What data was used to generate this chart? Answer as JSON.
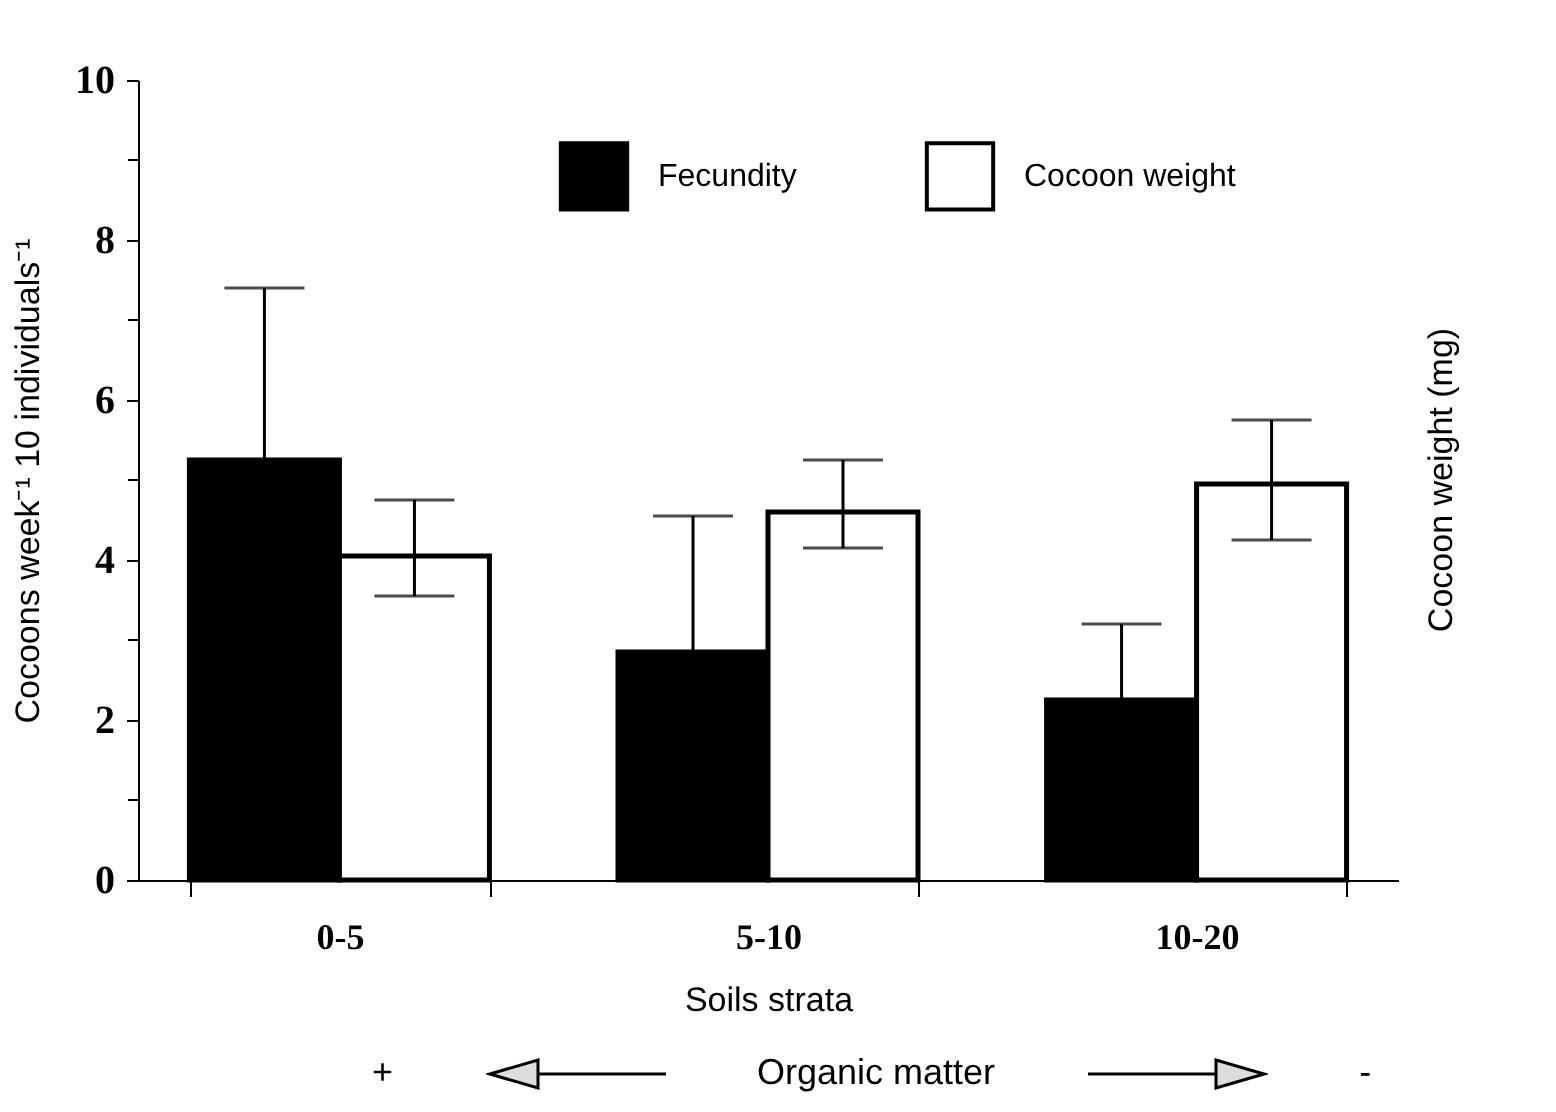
{
  "chart_data": {
    "type": "bar",
    "xlabel": "Soils strata",
    "ylabel": "Cocoons week⁻¹ 10 individuals⁻¹",
    "y2label": "Cocoon weight (mg)",
    "categories": [
      "0-5",
      "5-10",
      "10-20"
    ],
    "series": [
      {
        "name": "Fecundity",
        "color": "#000000",
        "values": [
          5.25,
          2.85,
          2.25
        ],
        "errors": [
          2.15,
          1.7,
          0.95
        ]
      },
      {
        "name": "Cocoon weight",
        "color": "#ffffff",
        "values": [
          4.05,
          4.6,
          4.95
        ],
        "errors": [
          [
            3.55,
            4.75
          ],
          [
            4.15,
            5.25
          ],
          [
            4.25,
            5.75
          ]
        ]
      }
    ],
    "ylim": [
      0,
      10
    ],
    "yticks": [
      0,
      {
        "value": 1,
        "label": null
      },
      2,
      {
        "value": 3,
        "label": null
      },
      4,
      {
        "value": 5,
        "label": null
      },
      6,
      {
        "value": 7,
        "label": null
      },
      8,
      {
        "value": 9,
        "label": null
      },
      10
    ],
    "legend": "top",
    "annotations": [
      "+",
      "Organic matter",
      "-"
    ]
  }
}
